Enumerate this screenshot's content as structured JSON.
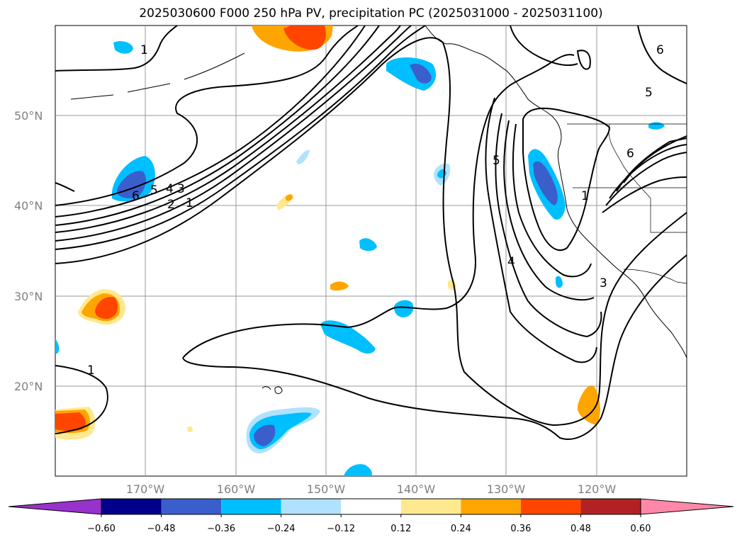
{
  "title": "2025030600 F000 250 hPa PV, precipitation PC (2025031000 - 2025031100)",
  "lat_labels": [
    "50°N",
    "40°N",
    "30°N",
    "20°N"
  ],
  "lon_labels": [
    "170°W",
    "160°W",
    "150°W",
    "140°W",
    "130°W",
    "120°W"
  ],
  "colorbar": {
    "ticks": [
      "−0.60",
      "−0.48",
      "−0.36",
      "−0.24",
      "−0.12",
      "0.12",
      "0.24",
      "0.36",
      "0.48",
      "0.60"
    ],
    "colors": [
      "#9932cc",
      "#00008b",
      "#3a5fcd",
      "#00bfff",
      "#b0e2ff",
      "#ffffff",
      "#ffe98f",
      "#ffa500",
      "#ff4500",
      "#b22222",
      "#ff88aa"
    ]
  },
  "contour_labels": [
    "1",
    "2",
    "3",
    "4",
    "5",
    "6"
  ]
}
